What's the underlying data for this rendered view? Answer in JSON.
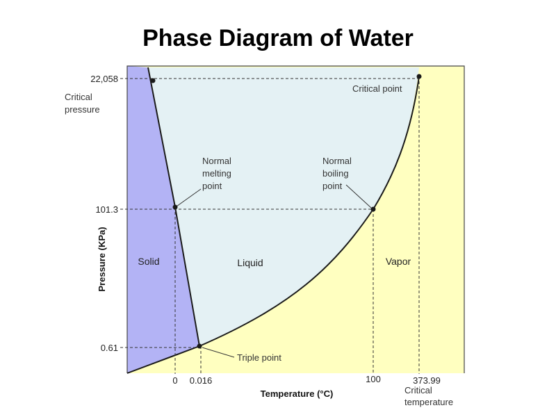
{
  "title": "Phase Diagram of Water",
  "colors": {
    "solid": "#b3b3f5",
    "liquid": "#e4f1f4",
    "vapor": "#ffffc0",
    "frame": "#444444",
    "curve": "#1a1a1a",
    "guide": "#333333"
  },
  "axes": {
    "xlabel": "Temperature (°C)",
    "ylabel": "Pressure (KPa)",
    "x_ticks": [
      "0",
      "0.016",
      "100",
      "373.99"
    ],
    "y_ticks": [
      "22,058",
      "101.3",
      "0.61"
    ]
  },
  "regions": {
    "solid": "Solid",
    "liquid": "Liquid",
    "vapor": "Vapor"
  },
  "annotations": {
    "critical_pressure": [
      "Critical",
      "pressure"
    ],
    "critical_temperature": [
      "Critical",
      "temperature"
    ],
    "critical_point": "Critical point",
    "normal_melting": [
      "Normal",
      "melting",
      "point"
    ],
    "normal_boiling": [
      "Normal",
      "boiling",
      "point"
    ],
    "triple_point": "Triple point"
  },
  "chart_data": {
    "type": "phase-diagram",
    "title": "Phase Diagram of Water",
    "xlabel": "Temperature (°C)",
    "ylabel": "Pressure (KPa)",
    "points": [
      {
        "name": "Triple point",
        "temperature": 0.016,
        "pressure": 0.61
      },
      {
        "name": "Normal melting point",
        "temperature": 0,
        "pressure": 101.3
      },
      {
        "name": "Normal boiling point",
        "temperature": 100,
        "pressure": 101.3
      },
      {
        "name": "Critical point",
        "temperature": 373.99,
        "pressure": 22058
      }
    ]
  }
}
